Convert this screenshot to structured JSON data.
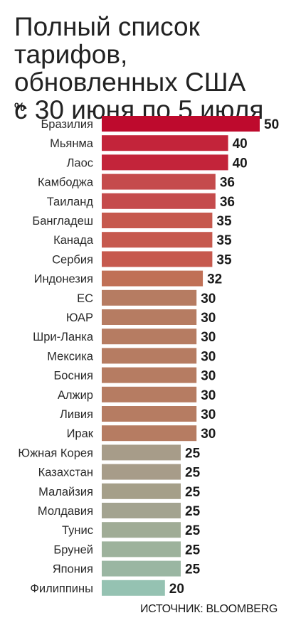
{
  "title_lines": [
    "Полный список тарифов,",
    "обновленных США",
    "с 30 июня по 5 июля"
  ],
  "unit": "%",
  "source": "ИСТОЧНИК: BLOOMBERG",
  "chart_data": {
    "type": "bar",
    "orientation": "horizontal",
    "title": "Полный список тарифов, обновленных США с 30 июня по 5 июля",
    "unit": "%",
    "categories": [
      "Бразилия",
      "Мьянма",
      "Лаос",
      "Камбоджа",
      "Таиланд",
      "Бангладеш",
      "Канада",
      "Сербия",
      "Индонезия",
      "ЕС",
      "ЮАР",
      "Шри-Ланка",
      "Мексика",
      "Босния",
      "Алжир",
      "Ливия",
      "Ирак",
      "Южная Корея",
      "Казахстан",
      "Малайзия",
      "Молдавия",
      "Тунис",
      "Бруней",
      "Япония",
      "Филиппины"
    ],
    "values": [
      50,
      40,
      40,
      36,
      36,
      35,
      35,
      35,
      32,
      30,
      30,
      30,
      30,
      30,
      30,
      30,
      30,
      25,
      25,
      25,
      25,
      25,
      25,
      25,
      20
    ],
    "colors": [
      "#be0a2d",
      "#c3243a",
      "#c3243a",
      "#c54b4c",
      "#c54b4c",
      "#c6594e",
      "#c6594e",
      "#c6594e",
      "#c07056",
      "#b67c62",
      "#b67c62",
      "#b67c62",
      "#b67c62",
      "#b67c62",
      "#b67c62",
      "#b67c62",
      "#b67c62",
      "#a79c89",
      "#a79c89",
      "#a59f89",
      "#a3a390",
      "#a0ac96",
      "#9db29c",
      "#9ab6a2",
      "#95c2b2"
    ],
    "legend": "none",
    "grid": false
  }
}
